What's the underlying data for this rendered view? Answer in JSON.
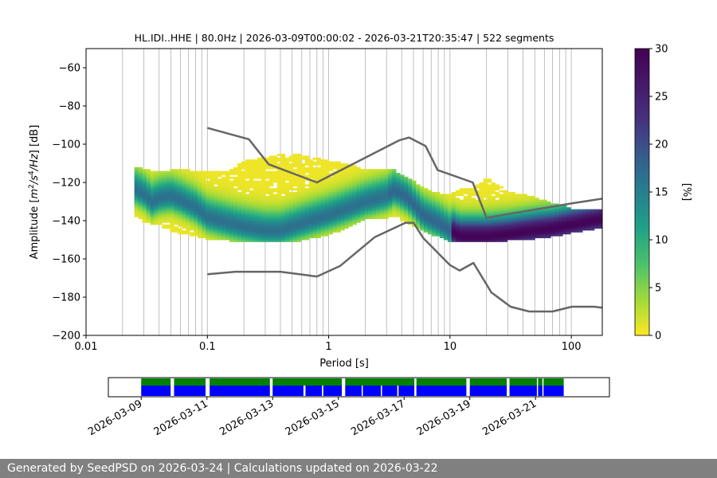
{
  "chart_data": {
    "type": "heatmap",
    "title": "HL.IDI..HHE | 80.0Hz | 2026-03-09T00:00:02 - 2026-03-21T20:35:47 | 522 segments",
    "xlabel": "Period [s]",
    "ylabel": "Amplitude [m²/s⁴/Hz] [dB]",
    "xscale": "log",
    "xlim": [
      0.01,
      180
    ],
    "ylim": [
      -200,
      -50
    ],
    "xticks": [
      0.01,
      0.1,
      1,
      10,
      100
    ],
    "xtick_labels": [
      "0.01",
      "0.1",
      "1",
      "10",
      "100"
    ],
    "yticks": [
      -200,
      -180,
      -160,
      -140,
      -120,
      -100,
      -80,
      -60
    ],
    "ytick_labels": [
      "−200",
      "−180",
      "−160",
      "−140",
      "−120",
      "−100",
      "−80",
      "−60"
    ],
    "grid": "vertical lines at major and minor x ticks",
    "colorbar": {
      "label": "[%]",
      "range": [
        0,
        30
      ],
      "ticks": [
        0,
        5,
        10,
        15,
        20,
        25,
        30
      ],
      "colormap": "viridis_r"
    },
    "mode_curve": {
      "period": [
        0.025,
        0.03,
        0.035,
        0.04,
        0.05,
        0.06,
        0.08,
        0.1,
        0.15,
        0.2,
        0.3,
        0.4,
        0.5,
        0.7,
        1,
        1.5,
        2,
        3,
        3.5,
        4.5,
        6,
        8,
        10,
        12,
        15,
        20,
        30,
        50,
        70,
        100,
        150,
        180
      ],
      "db": [
        -123,
        -126,
        -130,
        -128,
        -127,
        -129,
        -133,
        -138,
        -141,
        -143,
        -145,
        -145,
        -143,
        -140,
        -137,
        -133,
        -130,
        -127,
        -124,
        -128,
        -137,
        -141,
        -145,
        -148,
        -148,
        -148,
        -147,
        -145,
        -144,
        -142,
        -140,
        -139
      ]
    },
    "spread": {
      "period": [
        0.025,
        0.03,
        0.04,
        0.05,
        0.07,
        0.1,
        0.15,
        0.2,
        0.3,
        0.5,
        0.7,
        1,
        1.5,
        2,
        3,
        3.5,
        4.5,
        6,
        8,
        10,
        12,
        15,
        20,
        30,
        50,
        70,
        100,
        150,
        180
      ],
      "upper_db": [
        -112,
        -112,
        -114,
        -113,
        -113,
        -114,
        -114,
        -108,
        -106,
        -104,
        -106,
        -108,
        -110,
        -112,
        -113,
        -113,
        -117,
        -122,
        -125,
        -126,
        -123,
        -123,
        -117,
        -124,
        -127,
        -130,
        -133,
        -134,
        -134
      ],
      "lower_db": [
        -137,
        -140,
        -143,
        -145,
        -147,
        -149,
        -150,
        -151,
        -151,
        -151,
        -149,
        -147,
        -143,
        -139,
        -138,
        -137,
        -141,
        -145,
        -148,
        -151,
        -151,
        -151,
        -151,
        -150,
        -149,
        -148,
        -146,
        -144,
        -143
      ]
    },
    "noise_models": [
      {
        "period": [
          0.1,
          0.22,
          0.32,
          0.8,
          3.8,
          4.6,
          6.3,
          7.9,
          15.4,
          20,
          100,
          180
        ],
        "db": [
          -91.5,
          -97.4,
          -110.5,
          -120,
          -98,
          -96.5,
          -101,
          -113.5,
          -120,
          -138.5,
          -131,
          -128.5
        ]
      },
      {
        "period": [
          0.1,
          0.17,
          0.4,
          0.8,
          1.24,
          2.4,
          4.3,
          5,
          6,
          10,
          12,
          15.6,
          21.9,
          31.6,
          45,
          70,
          101,
          154,
          180
        ],
        "db": [
          -168,
          -166.7,
          -166.7,
          -169.2,
          -163.7,
          -148.6,
          -141.1,
          -141.1,
          -149,
          -163.2,
          -166.1,
          -162.1,
          -177.5,
          -185,
          -187.5,
          -187.5,
          -185,
          -185,
          -185.5
        ]
      }
    ],
    "availability": {
      "date_ticks": [
        "2026-03-09",
        "2026-03-11",
        "2026-03-13",
        "2026-03-15",
        "2026-03-17",
        "2026-03-19",
        "2026-03-21"
      ],
      "date_range": [
        "2026-03-08T00:00:00",
        "2026-03-23T06:00:00"
      ],
      "data_range": [
        "2026-03-09T00:00:02",
        "2026-03-21T20:35:47"
      ],
      "gaps_upper": [
        [
          "2026-03-09T21:30",
          "2026-03-10T00:00"
        ],
        [
          "2026-03-10T23:00",
          "2026-03-11T02:00"
        ],
        [
          "2026-03-12T22:00",
          "2026-03-13T00:00"
        ],
        [
          "2026-03-15T02:30",
          "2026-03-15T05:00"
        ],
        [
          "2026-03-17T07:30",
          "2026-03-17T09:00"
        ],
        [
          "2026-03-18T21:30",
          "2026-03-19T00:00"
        ],
        [
          "2026-03-20T03:00",
          "2026-03-20T05:00"
        ],
        [
          "2026-03-21T01:00",
          "2026-03-21T01:30"
        ],
        [
          "2026-03-21T05:00",
          "2026-03-21T05:30"
        ]
      ],
      "gaps_lower": [
        [
          "2026-03-09T21:30",
          "2026-03-10T00:00"
        ],
        [
          "2026-03-10T23:00",
          "2026-03-11T02:00"
        ],
        [
          "2026-03-12T22:00",
          "2026-03-13T00:00"
        ],
        [
          "2026-03-13T22:30",
          "2026-03-14T00:00"
        ],
        [
          "2026-03-14T12:00",
          "2026-03-14T13:00"
        ],
        [
          "2026-03-15T02:30",
          "2026-03-15T05:00"
        ],
        [
          "2026-03-15T17:00",
          "2026-03-15T17:30"
        ],
        [
          "2026-03-16T07:00",
          "2026-03-16T07:30"
        ],
        [
          "2026-03-16T19:00",
          "2026-03-16T20:00"
        ],
        [
          "2026-03-17T07:30",
          "2026-03-17T09:00"
        ],
        [
          "2026-03-18T21:30",
          "2026-03-19T00:00"
        ],
        [
          "2026-03-20T03:00",
          "2026-03-20T05:00"
        ],
        [
          "2026-03-21T01:00",
          "2026-03-21T01:30"
        ],
        [
          "2026-03-21T05:00",
          "2026-03-21T05:30"
        ]
      ],
      "color_upper": "#008000",
      "color_lower": "#0000ff"
    },
    "colors": {
      "noise_model": "#666666",
      "grid": "#b0b0b0"
    }
  },
  "footer": {
    "text": "Generated by SeedPSD on 2026-03-24 | Calculations updated on 2026-03-22"
  }
}
